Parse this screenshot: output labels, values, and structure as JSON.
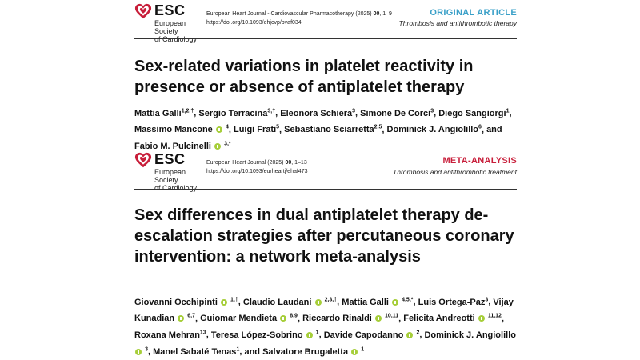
{
  "papers": [
    {
      "society_line1": "European Society",
      "society_line2": "of Cardiology",
      "esc": "ESC",
      "journal_line1_a": "European Heart Journal - Cardiovascular Pharmacotherapy (2025) ",
      "journal_line1_b": "00",
      "journal_line1_c": ", 1–9",
      "doi": "https://doi.org/10.1093/ehjcvp/pvaf034",
      "article_type": "ORIGINAL ARTICLE",
      "topic": "Thrombosis and antithrombotic therapy",
      "title": "Sex-related variations in platelet reactivity in presence or absence of antiplatelet therapy",
      "authors": [
        {
          "name": "Mattia Galli",
          "sup": "1,2,†",
          "orcid": false
        },
        {
          "name": "Sergio Terracina",
          "sup": "3,†",
          "orcid": false
        },
        {
          "name": "Eleonora Schiera",
          "sup": "3",
          "orcid": false
        },
        {
          "name": "Simone De Corci",
          "sup": "3",
          "orcid": false
        },
        {
          "name": "Diego Sangiorgi",
          "sup": "1",
          "orcid": false
        },
        {
          "name": "Massimo Mancone",
          "sup": "4",
          "orcid": true
        },
        {
          "name": "Luigi Frati",
          "sup": "5",
          "orcid": false
        },
        {
          "name": "Sebastiano Sciarretta",
          "sup": "2,5",
          "orcid": false
        },
        {
          "name": "Dominick J. Angiolillo",
          "sup": "6",
          "orcid": false
        },
        {
          "name": "Fabio M. Pulcinelli",
          "sup": "3,*",
          "orcid": true,
          "prefix": "and "
        }
      ]
    },
    {
      "society_line1": "European Society",
      "society_line2": "of Cardiology",
      "esc": "ESC",
      "journal_line1_a": "European Heart Journal (2025) ",
      "journal_line1_b": "00",
      "journal_line1_c": ", 1–13",
      "doi": "https://doi.org/10.1093/eurheartj/ehaf473",
      "article_type": "META-ANALYSIS",
      "topic": "Thrombosis and antithrombotic treatment",
      "title": "Sex differences in dual antiplatelet therapy de-escalation strategies after percutaneous coronary intervention: a network meta-analysis",
      "authors": [
        {
          "name": "Giovanni Occhipinti",
          "sup": "1,†",
          "orcid": true
        },
        {
          "name": "Claudio Laudani",
          "sup": "2,3,†",
          "orcid": true
        },
        {
          "name": "Mattia Galli",
          "sup": "4,5,*",
          "orcid": true
        },
        {
          "name": "Luis Ortega-Paz",
          "sup": "3",
          "orcid": false
        },
        {
          "name": "Vijay Kunadian",
          "sup": "6,7",
          "orcid": true
        },
        {
          "name": "Guiomar Mendieta",
          "sup": "8,9",
          "orcid": true
        },
        {
          "name": "Riccardo Rinaldi",
          "sup": "10,11",
          "orcid": true
        },
        {
          "name": "Felicita Andreotti",
          "sup": "11,12",
          "orcid": true
        },
        {
          "name": "Roxana Mehran",
          "sup": "13",
          "orcid": false
        },
        {
          "name": "Teresa López-Sobrino",
          "sup": "1",
          "orcid": true
        },
        {
          "name": "Davide Capodanno",
          "sup": "2",
          "orcid": true
        },
        {
          "name": "Dominick J. Angiolillo",
          "sup": "3",
          "orcid": true
        },
        {
          "name": "Manel Sabaté Tenas",
          "sup": "1",
          "orcid": false
        },
        {
          "name": "Salvatore Brugaletta",
          "sup": "1",
          "orcid": true,
          "prefix": "and "
        }
      ]
    }
  ]
}
